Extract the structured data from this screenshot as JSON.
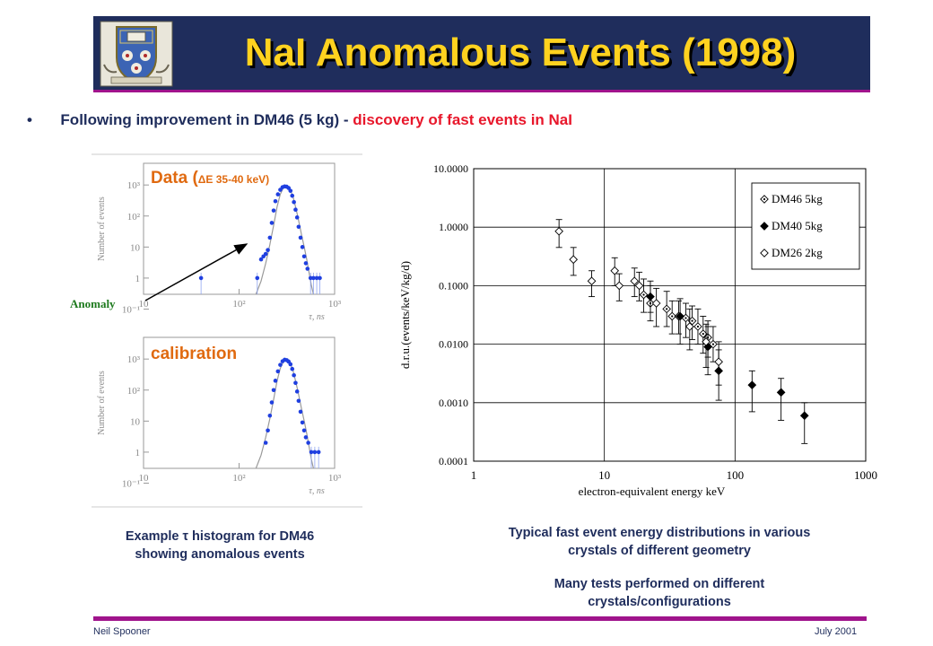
{
  "slide": {
    "title": "NaI Anomalous Events (1998)",
    "bullet_marker": "•",
    "bullet_part1": "Following improvement in DM46 (5 kg) - ",
    "bullet_part2": "discovery of fast events in NaI",
    "footer_left": "Neil Spooner",
    "footer_right": "July 2001",
    "colors": {
      "title_bg": "#1f2d5c",
      "title_text": "#ffd21f",
      "accent": "#a0148c",
      "highlight": "#e8172b",
      "label": "#e06a10",
      "hist_points": "#1f3fe0"
    }
  },
  "left_panel": {
    "data_label_main": "Data (",
    "data_label_delta": "ΔE 35-40 keV)",
    "calibration_label": "calibration",
    "anomaly_label": "Anomaly",
    "caption_line1_a": "Example ",
    "caption_line1_tau": "τ",
    "caption_line1_b": " histogram for DM46",
    "caption_line2": "showing anomalous events"
  },
  "right_panel": {
    "caption1_line1": "Typical fast event energy distributions in various",
    "caption1_line2": "crystals of different geometry",
    "caption2_line1": "Many tests performed on different",
    "caption2_line2": "crystals/configurations"
  },
  "chart_data": [
    {
      "type": "scatter",
      "id": "histogram-data",
      "xlabel": "τ, ns",
      "ylabel": "Number of events",
      "xscale": "log",
      "yscale": "log",
      "xlim": [
        10,
        1000
      ],
      "ylim": [
        0.3,
        5000
      ],
      "x_tick_labels": [
        "10",
        "10²",
        "10³"
      ],
      "y_tick_labels": [
        "10³",
        "10²",
        "10",
        "1",
        "10⁻¹"
      ],
      "series": [
        {
          "values": [
            [
              40,
              1
            ],
            [
              155,
              1
            ],
            [
              170,
              4
            ],
            [
              180,
              5
            ],
            [
              190,
              6
            ],
            [
              200,
              8
            ],
            [
              210,
              20
            ],
            [
              220,
              60
            ],
            [
              230,
              150
            ],
            [
              240,
              300
            ],
            [
              255,
              500
            ],
            [
              270,
              700
            ],
            [
              285,
              850
            ],
            [
              300,
              900
            ],
            [
              315,
              880
            ],
            [
              330,
              800
            ],
            [
              345,
              650
            ],
            [
              360,
              450
            ],
            [
              375,
              280
            ],
            [
              390,
              160
            ],
            [
              405,
              90
            ],
            [
              420,
              45
            ],
            [
              440,
              20
            ],
            [
              460,
              10
            ],
            [
              480,
              5
            ],
            [
              500,
              3
            ],
            [
              520,
              2
            ],
            [
              560,
              1
            ],
            [
              600,
              1
            ],
            [
              650,
              1
            ],
            [
              700,
              1
            ]
          ]
        }
      ],
      "fit_curve": [
        [
          150,
          0.3
        ],
        [
          170,
          0.8
        ],
        [
          190,
          3
        ],
        [
          210,
          12
        ],
        [
          230,
          50
        ],
        [
          250,
          200
        ],
        [
          270,
          500
        ],
        [
          290,
          800
        ],
        [
          310,
          900
        ],
        [
          330,
          820
        ],
        [
          350,
          620
        ],
        [
          370,
          380
        ],
        [
          390,
          200
        ],
        [
          410,
          100
        ],
        [
          430,
          50
        ],
        [
          450,
          25
        ],
        [
          480,
          10
        ],
        [
          510,
          4
        ],
        [
          540,
          1.5
        ],
        [
          570,
          0.6
        ],
        [
          600,
          0.3
        ]
      ]
    },
    {
      "type": "scatter",
      "id": "histogram-calibration",
      "xlabel": "τ, ns",
      "ylabel": "Number of events",
      "xscale": "log",
      "yscale": "log",
      "xlim": [
        10,
        1000
      ],
      "ylim": [
        0.3,
        5000
      ],
      "x_tick_labels": [
        "10",
        "10²",
        "10³"
      ],
      "y_tick_labels": [
        "10³",
        "10²",
        "10",
        "1",
        "10⁻¹"
      ],
      "series": [
        {
          "values": [
            [
              190,
              2
            ],
            [
              200,
              5
            ],
            [
              210,
              15
            ],
            [
              220,
              40
            ],
            [
              230,
              100
            ],
            [
              240,
              200
            ],
            [
              255,
              400
            ],
            [
              270,
              650
            ],
            [
              285,
              850
            ],
            [
              300,
              950
            ],
            [
              315,
              920
            ],
            [
              330,
              830
            ],
            [
              345,
              680
            ],
            [
              360,
              480
            ],
            [
              375,
              300
            ],
            [
              390,
              170
            ],
            [
              405,
              90
            ],
            [
              420,
              45
            ],
            [
              440,
              20
            ],
            [
              460,
              9
            ],
            [
              480,
              5
            ],
            [
              500,
              3
            ],
            [
              530,
              2
            ],
            [
              570,
              1
            ],
            [
              620,
              1
            ],
            [
              680,
              1
            ]
          ]
        }
      ],
      "fit_curve": [
        [
          150,
          0.3
        ],
        [
          170,
          0.8
        ],
        [
          190,
          3
        ],
        [
          210,
          12
        ],
        [
          230,
          50
        ],
        [
          250,
          200
        ],
        [
          270,
          500
        ],
        [
          290,
          800
        ],
        [
          310,
          920
        ],
        [
          330,
          840
        ],
        [
          350,
          640
        ],
        [
          370,
          390
        ],
        [
          390,
          200
        ],
        [
          410,
          100
        ],
        [
          430,
          50
        ],
        [
          450,
          25
        ],
        [
          480,
          10
        ],
        [
          510,
          4
        ],
        [
          540,
          1.5
        ],
        [
          570,
          0.6
        ],
        [
          600,
          0.3
        ]
      ]
    },
    {
      "type": "scatter",
      "id": "energy-distribution",
      "xlabel": "electron-equivalent energy keV",
      "ylabel": "d.r.u.(events/keV/kg/d)",
      "xscale": "log",
      "yscale": "log",
      "xlim": [
        1,
        1000
      ],
      "ylim": [
        0.0001,
        10
      ],
      "x_ticks": [
        1,
        10,
        100,
        1000
      ],
      "x_tick_labels": [
        "1",
        "10",
        "100",
        "1000"
      ],
      "y_ticks": [
        0.0001,
        0.001,
        0.01,
        0.1,
        1,
        10
      ],
      "y_tick_labels": [
        "0.0001",
        "0.0010",
        "0.0100",
        "0.1000",
        "1.0000",
        "10.0000"
      ],
      "grid": true,
      "legend": "top-right",
      "series": [
        {
          "name": "DM46  5kg",
          "marker": "open-diamond-dot",
          "points": [
            {
              "x": 20,
              "y": 0.07,
              "lo": 0.035,
              "hi": 0.13
            },
            {
              "x": 22.5,
              "y": 0.05,
              "lo": 0.025,
              "hi": 0.1
            },
            {
              "x": 30,
              "y": 0.04,
              "lo": 0.02,
              "hi": 0.08
            },
            {
              "x": 33,
              "y": 0.03,
              "lo": 0.015,
              "hi": 0.055
            },
            {
              "x": 37,
              "y": 0.03,
              "lo": 0.015,
              "hi": 0.055
            },
            {
              "x": 42,
              "y": 0.028,
              "lo": 0.013,
              "hi": 0.05
            },
            {
              "x": 47,
              "y": 0.025,
              "lo": 0.012,
              "hi": 0.045
            },
            {
              "x": 52,
              "y": 0.02,
              "lo": 0.01,
              "hi": 0.04
            },
            {
              "x": 57,
              "y": 0.015,
              "lo": 0.007,
              "hi": 0.03
            },
            {
              "x": 62,
              "y": 0.013,
              "lo": 0.006,
              "hi": 0.025
            },
            {
              "x": 68,
              "y": 0.01,
              "lo": 0.005,
              "hi": 0.02
            }
          ]
        },
        {
          "name": "DM40  5kg",
          "marker": "filled-diamond",
          "points": [
            {
              "x": 22.5,
              "y": 0.065,
              "lo": 0.035,
              "hi": 0.12
            },
            {
              "x": 38,
              "y": 0.03,
              "lo": 0.01,
              "hi": 0.06
            },
            {
              "x": 62,
              "y": 0.009,
              "lo": 0.003,
              "hi": 0.02
            },
            {
              "x": 75,
              "y": 0.0035,
              "lo": 0.0011,
              "hi": 0.008
            },
            {
              "x": 135,
              "y": 0.002,
              "lo": 0.0007,
              "hi": 0.0035
            },
            {
              "x": 225,
              "y": 0.0015,
              "lo": 0.0005,
              "hi": 0.0026
            },
            {
              "x": 340,
              "y": 0.0006,
              "lo": 0.0002,
              "hi": 0.001
            }
          ]
        },
        {
          "name": "DM26  2kg",
          "marker": "open-diamond",
          "points": [
            {
              "x": 4.5,
              "y": 0.85,
              "lo": 0.45,
              "hi": 1.35
            },
            {
              "x": 5.8,
              "y": 0.28,
              "lo": 0.15,
              "hi": 0.45
            },
            {
              "x": 8,
              "y": 0.12,
              "lo": 0.065,
              "hi": 0.18
            },
            {
              "x": 12,
              "y": 0.18,
              "lo": 0.1,
              "hi": 0.3
            },
            {
              "x": 13,
              "y": 0.1,
              "lo": 0.055,
              "hi": 0.16
            },
            {
              "x": 17,
              "y": 0.12,
              "lo": 0.065,
              "hi": 0.2
            },
            {
              "x": 18.5,
              "y": 0.1,
              "lo": 0.055,
              "hi": 0.17
            },
            {
              "x": 25,
              "y": 0.05,
              "lo": 0.02,
              "hi": 0.09
            },
            {
              "x": 45,
              "y": 0.02,
              "lo": 0.008,
              "hi": 0.04
            },
            {
              "x": 60,
              "y": 0.011,
              "lo": 0.004,
              "hi": 0.022
            },
            {
              "x": 75,
              "y": 0.005,
              "lo": 0.002,
              "hi": 0.011
            }
          ]
        }
      ]
    }
  ]
}
